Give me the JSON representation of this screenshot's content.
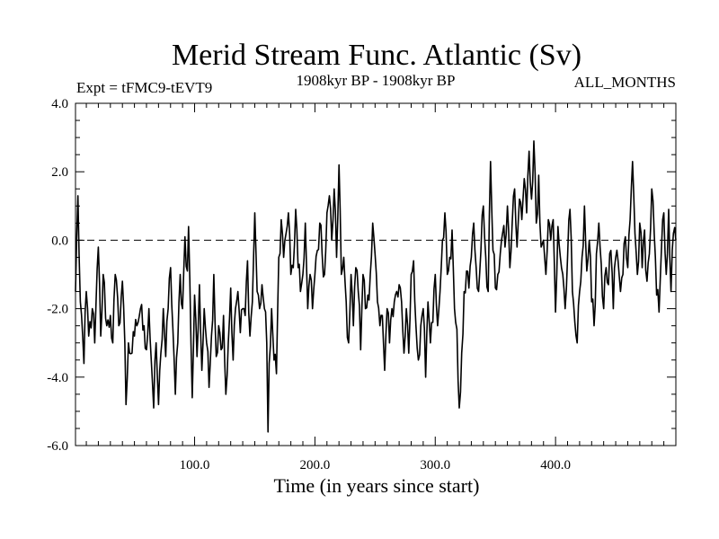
{
  "chart_data": {
    "type": "line",
    "title": "Merid Stream Func. Atlantic (Sv)",
    "subtitle_left": "Expt = tFMC9-tEVT9",
    "subtitle_center": "1908kyr BP - 1908kyr BP",
    "subtitle_right": "ALL_MONTHS",
    "xlabel": "Time (in years since start)",
    "ylabel": "",
    "xlim": [
      1,
      500
    ],
    "ylim": [
      -6.0,
      4.0
    ],
    "x_ticks": [
      100,
      200,
      300,
      400
    ],
    "x_tick_labels": [
      "100.0",
      "200.0",
      "300.0",
      "400.0"
    ],
    "y_ticks": [
      -6,
      -4,
      -2,
      0,
      2,
      4
    ],
    "y_tick_labels": [
      "-6.0",
      "-4.0",
      "-2.0",
      "0.0",
      "2.0",
      "4.0"
    ],
    "zero_line": 0.0,
    "anchors": [
      [
        1,
        -1.5
      ],
      [
        3,
        1.3
      ],
      [
        5,
        -1.8
      ],
      [
        7,
        -2.8
      ],
      [
        8,
        -3.6
      ],
      [
        10,
        -1.5
      ],
      [
        12,
        -2.8
      ],
      [
        15,
        -2.0
      ],
      [
        17,
        -3.0
      ],
      [
        20,
        -0.2
      ],
      [
        22,
        -2.8
      ],
      [
        24,
        -1.0
      ],
      [
        27,
        -2.5
      ],
      [
        30,
        -2.2
      ],
      [
        32,
        -3.0
      ],
      [
        34,
        -1.0
      ],
      [
        37,
        -2.5
      ],
      [
        40,
        -1.2
      ],
      [
        42,
        -3.0
      ],
      [
        43,
        -4.8
      ],
      [
        45,
        -3.0
      ],
      [
        48,
        -3.3
      ],
      [
        50,
        -2.8
      ],
      [
        52,
        -2.5
      ],
      [
        55,
        -2.0
      ],
      [
        58,
        -2.5
      ],
      [
        60,
        -3.2
      ],
      [
        62,
        -2.0
      ],
      [
        64,
        -3.5
      ],
      [
        66,
        -4.9
      ],
      [
        68,
        -3.0
      ],
      [
        70,
        -4.8
      ],
      [
        72,
        -3.3
      ],
      [
        74,
        -2.0
      ],
      [
        76,
        -3.4
      ],
      [
        78,
        -2.0
      ],
      [
        80,
        -0.8
      ],
      [
        82,
        -2.6
      ],
      [
        84,
        -4.5
      ],
      [
        86,
        -3.0
      ],
      [
        88,
        -1.0
      ],
      [
        90,
        -2.0
      ],
      [
        92,
        0.1
      ],
      [
        94,
        -0.9
      ],
      [
        95,
        0.4
      ],
      [
        97,
        -3.0
      ],
      [
        98,
        -4.6
      ],
      [
        100,
        -1.6
      ],
      [
        102,
        -3.4
      ],
      [
        104,
        -1.3
      ],
      [
        106,
        -3.8
      ],
      [
        108,
        -2.0
      ],
      [
        110,
        -3.0
      ],
      [
        112,
        -4.3
      ],
      [
        114,
        -2.8
      ],
      [
        116,
        -1.0
      ],
      [
        118,
        -3.4
      ],
      [
        120,
        -2.5
      ],
      [
        122,
        -3.2
      ],
      [
        124,
        -2.2
      ],
      [
        126,
        -4.5
      ],
      [
        128,
        -3.0
      ],
      [
        130,
        -1.4
      ],
      [
        132,
        -3.5
      ],
      [
        134,
        -2.0
      ],
      [
        136,
        -1.5
      ],
      [
        138,
        -2.7
      ],
      [
        140,
        -2.0
      ],
      [
        142,
        -2.2
      ],
      [
        144,
        -0.6
      ],
      [
        146,
        -2.8
      ],
      [
        148,
        -1.8
      ],
      [
        150,
        0.8
      ],
      [
        152,
        -1.5
      ],
      [
        154,
        -2.0
      ],
      [
        156,
        -1.3
      ],
      [
        158,
        -2.0
      ],
      [
        160,
        -3.0
      ],
      [
        161,
        -5.6
      ],
      [
        162,
        -3.6
      ],
      [
        164,
        -2.0
      ],
      [
        166,
        -3.5
      ],
      [
        168,
        -3.9
      ],
      [
        170,
        -0.5
      ],
      [
        172,
        0.6
      ],
      [
        174,
        -0.5
      ],
      [
        176,
        0.2
      ],
      [
        178,
        0.8
      ],
      [
        180,
        -1.0
      ],
      [
        182,
        -0.8
      ],
      [
        184,
        0.9
      ],
      [
        186,
        -0.8
      ],
      [
        188,
        -1.5
      ],
      [
        190,
        -1.0
      ],
      [
        192,
        0.5
      ],
      [
        194,
        -2.0
      ],
      [
        196,
        -1.0
      ],
      [
        198,
        -2.0
      ],
      [
        200,
        -1.0
      ],
      [
        202,
        -0.3
      ],
      [
        204,
        0.5
      ],
      [
        206,
        -0.4
      ],
      [
        208,
        -1.0
      ],
      [
        210,
        0.8
      ],
      [
        212,
        1.3
      ],
      [
        214,
        0.0
      ],
      [
        216,
        1.5
      ],
      [
        218,
        -0.5
      ],
      [
        220,
        2.2
      ],
      [
        222,
        -1.0
      ],
      [
        224,
        -0.5
      ],
      [
        226,
        -1.8
      ],
      [
        228,
        -3.0
      ],
      [
        230,
        -1.0
      ],
      [
        232,
        -2.5
      ],
      [
        234,
        -0.8
      ],
      [
        236,
        -1.5
      ],
      [
        238,
        -3.2
      ],
      [
        240,
        -1.0
      ],
      [
        242,
        -2.0
      ],
      [
        244,
        -1.6
      ],
      [
        246,
        -1.0
      ],
      [
        248,
        0.5
      ],
      [
        250,
        -0.4
      ],
      [
        252,
        -1.8
      ],
      [
        254,
        -2.5
      ],
      [
        256,
        -2.2
      ],
      [
        258,
        -3.8
      ],
      [
        260,
        -2.0
      ],
      [
        262,
        -3.0
      ],
      [
        264,
        -2.0
      ],
      [
        266,
        -1.8
      ],
      [
        268,
        -1.5
      ],
      [
        270,
        -1.3
      ],
      [
        272,
        -1.8
      ],
      [
        274,
        -3.3
      ],
      [
        276,
        -2.0
      ],
      [
        278,
        -3.3
      ],
      [
        280,
        -1.0
      ],
      [
        282,
        -0.6
      ],
      [
        284,
        -2.5
      ],
      [
        286,
        -3.5
      ],
      [
        288,
        -2.5
      ],
      [
        290,
        -2.0
      ],
      [
        292,
        -4.0
      ],
      [
        294,
        -1.8
      ],
      [
        296,
        -3.0
      ],
      [
        298,
        -2.4
      ],
      [
        300,
        -1.0
      ],
      [
        302,
        -2.5
      ],
      [
        304,
        -1.5
      ],
      [
        306,
        0.0
      ],
      [
        308,
        0.8
      ],
      [
        310,
        -1.0
      ],
      [
        312,
        -0.5
      ],
      [
        314,
        0.3
      ],
      [
        316,
        -2.0
      ],
      [
        318,
        -2.6
      ],
      [
        320,
        -4.9
      ],
      [
        322,
        -3.3
      ],
      [
        324,
        -1.5
      ],
      [
        326,
        -0.9
      ],
      [
        328,
        -1.4
      ],
      [
        330,
        -0.5
      ],
      [
        332,
        0.5
      ],
      [
        334,
        -0.8
      ],
      [
        336,
        -1.5
      ],
      [
        338,
        -0.3
      ],
      [
        340,
        1.0
      ],
      [
        342,
        -0.5
      ],
      [
        344,
        -1.5
      ],
      [
        346,
        2.3
      ],
      [
        348,
        -0.3
      ],
      [
        350,
        -1.4
      ],
      [
        352,
        -1.0
      ],
      [
        354,
        -0.4
      ],
      [
        356,
        0.2
      ],
      [
        358,
        -0.2
      ],
      [
        360,
        1.0
      ],
      [
        362,
        -0.8
      ],
      [
        364,
        0.5
      ],
      [
        366,
        1.5
      ],
      [
        368,
        -0.2
      ],
      [
        370,
        1.2
      ],
      [
        372,
        0.6
      ],
      [
        374,
        1.8
      ],
      [
        376,
        0.8
      ],
      [
        378,
        2.6
      ],
      [
        380,
        1.2
      ],
      [
        382,
        2.9
      ],
      [
        384,
        0.5
      ],
      [
        386,
        1.9
      ],
      [
        388,
        -0.2
      ],
      [
        390,
        0.0
      ],
      [
        392,
        -1.0
      ],
      [
        394,
        0.6
      ],
      [
        396,
        0.0
      ],
      [
        398,
        0.6
      ],
      [
        400,
        -2.1
      ],
      [
        402,
        0.4
      ],
      [
        404,
        -0.5
      ],
      [
        406,
        -1.0
      ],
      [
        408,
        -2.0
      ],
      [
        410,
        -0.5
      ],
      [
        412,
        0.9
      ],
      [
        414,
        -1.5
      ],
      [
        416,
        -2.4
      ],
      [
        418,
        -3.0
      ],
      [
        420,
        -1.5
      ],
      [
        422,
        -0.5
      ],
      [
        424,
        1.0
      ],
      [
        426,
        -0.9
      ],
      [
        428,
        0.0
      ],
      [
        430,
        -1.8
      ],
      [
        432,
        -2.5
      ],
      [
        434,
        -0.4
      ],
      [
        436,
        0.5
      ],
      [
        438,
        -0.7
      ],
      [
        440,
        -2.0
      ],
      [
        442,
        -0.8
      ],
      [
        444,
        -1.3
      ],
      [
        446,
        -0.3
      ],
      [
        448,
        -2.0
      ],
      [
        450,
        -0.5
      ],
      [
        452,
        -0.6
      ],
      [
        454,
        -1.5
      ],
      [
        456,
        -1.0
      ],
      [
        458,
        0.1
      ],
      [
        460,
        -0.8
      ],
      [
        462,
        0.6
      ],
      [
        464,
        2.3
      ],
      [
        466,
        0.2
      ],
      [
        468,
        -1.0
      ],
      [
        470,
        0.5
      ],
      [
        472,
        -0.8
      ],
      [
        474,
        0.3
      ],
      [
        476,
        -1.2
      ],
      [
        478,
        -0.4
      ],
      [
        480,
        1.5
      ],
      [
        482,
        0.2
      ],
      [
        484,
        -1.6
      ],
      [
        486,
        -2.1
      ],
      [
        488,
        -0.3
      ],
      [
        490,
        0.8
      ],
      [
        492,
        -1.0
      ],
      [
        494,
        0.9
      ],
      [
        496,
        -1.5
      ],
      [
        498,
        0.2
      ],
      [
        500,
        0.0
      ]
    ]
  }
}
